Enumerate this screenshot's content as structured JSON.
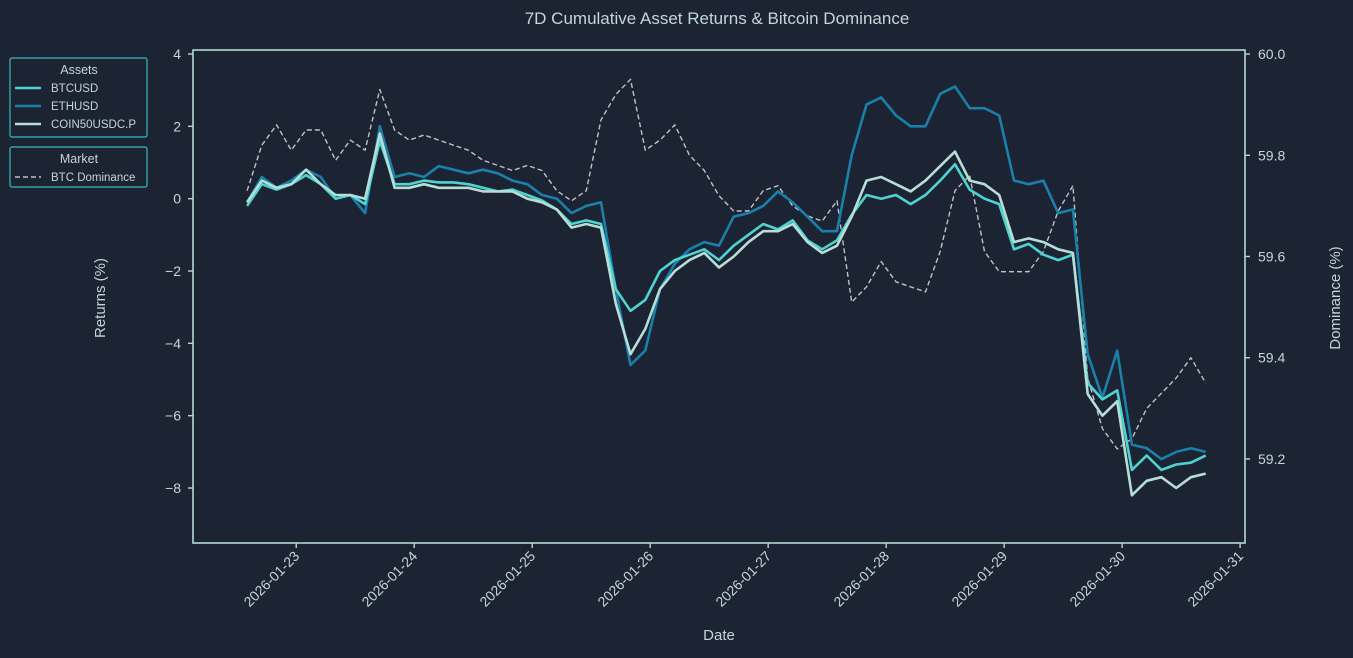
{
  "chart_data": {
    "type": "line",
    "title": "7D Cumulative Asset Returns & Bitcoin Dominance",
    "xlabel": "Date",
    "ylabel": "Returns (%)",
    "ylabel_right": "Dominance (%)",
    "xlim": [
      "2026-01-22 03:00",
      "2026-01-31 01:00"
    ],
    "ylim": [
      -9.52,
      4.11
    ],
    "ylim_right": [
      59.034,
      60.008
    ],
    "grid": false,
    "xticks": [
      "2026-01-23",
      "2026-01-24",
      "2026-01-25",
      "2026-01-26",
      "2026-01-27",
      "2026-01-28",
      "2026-01-29",
      "2026-01-30",
      "2026-01-31"
    ],
    "yticks": [
      4,
      2,
      0,
      -2,
      -4,
      -6,
      -8
    ],
    "yticks_right": [
      "59.2",
      "59.4",
      "59.6",
      "59.8",
      "60.0"
    ],
    "legends": [
      {
        "title": "Assets",
        "placement": "outside-top-left",
        "entries": [
          "BTCUSD",
          "ETHUSD",
          "COIN50USDC.P"
        ]
      },
      {
        "title": "Market",
        "placement": "outside-top-left",
        "entries": [
          "BTC Dominance"
        ]
      }
    ],
    "x": [
      "2026-01-22 14:00",
      "2026-01-22 17:00",
      "2026-01-22 20:00",
      "2026-01-22 23:00",
      "2026-01-23 02:00",
      "2026-01-23 05:00",
      "2026-01-23 08:00",
      "2026-01-23 11:00",
      "2026-01-23 14:00",
      "2026-01-23 17:00",
      "2026-01-23 20:00",
      "2026-01-23 23:00",
      "2026-01-24 02:00",
      "2026-01-24 05:00",
      "2026-01-24 08:00",
      "2026-01-24 11:00",
      "2026-01-24 14:00",
      "2026-01-24 17:00",
      "2026-01-24 20:00",
      "2026-01-24 23:00",
      "2026-01-25 02:00",
      "2026-01-25 05:00",
      "2026-01-25 08:00",
      "2026-01-25 11:00",
      "2026-01-25 14:00",
      "2026-01-25 17:00",
      "2026-01-25 20:00",
      "2026-01-25 23:00",
      "2026-01-26 02:00",
      "2026-01-26 05:00",
      "2026-01-26 08:00",
      "2026-01-26 11:00",
      "2026-01-26 14:00",
      "2026-01-26 17:00",
      "2026-01-26 20:00",
      "2026-01-26 23:00",
      "2026-01-27 02:00",
      "2026-01-27 05:00",
      "2026-01-27 08:00",
      "2026-01-27 11:00",
      "2026-01-27 14:00",
      "2026-01-27 17:00",
      "2026-01-27 20:00",
      "2026-01-27 23:00",
      "2026-01-28 02:00",
      "2026-01-28 05:00",
      "2026-01-28 08:00",
      "2026-01-28 11:00",
      "2026-01-28 14:00",
      "2026-01-28 17:00",
      "2026-01-28 20:00",
      "2026-01-28 23:00",
      "2026-01-29 02:00",
      "2026-01-29 05:00",
      "2026-01-29 08:00",
      "2026-01-29 11:00",
      "2026-01-29 14:00",
      "2026-01-29 17:00",
      "2026-01-29 20:00",
      "2026-01-29 23:00",
      "2026-01-30 02:00",
      "2026-01-30 05:00",
      "2026-01-30 08:00",
      "2026-01-30 11:00",
      "2026-01-30 14:00",
      "2026-01-30 17:00"
    ],
    "series": [
      {
        "name": "BTCUSD",
        "axis": "left",
        "color": "#4fd3d0",
        "style": "solid",
        "values": [
          -0.2,
          0.4,
          0.25,
          0.4,
          0.65,
          0.4,
          0,
          0.1,
          -0.15,
          1.6,
          0.4,
          0.4,
          0.5,
          0.45,
          0.45,
          0.4,
          0.3,
          0.2,
          0.25,
          0.1,
          -0.05,
          -0.3,
          -0.7,
          -0.6,
          -0.7,
          -2.5,
          -3.1,
          -2.8,
          -2.0,
          -1.7,
          -1.55,
          -1.4,
          -1.7,
          -1.3,
          -1.0,
          -0.7,
          -0.85,
          -0.6,
          -1.15,
          -1.4,
          -1.15,
          -0.45,
          0.1,
          0,
          0.1,
          -0.15,
          0.1,
          0.5,
          0.95,
          0.25,
          0,
          -0.15,
          -1.4,
          -1.25,
          -1.55,
          -1.7,
          -1.55,
          -5.1,
          -5.55,
          -5.3,
          -7.5,
          -7.1,
          -7.5,
          -7.35,
          -7.3,
          -7.1
        ]
      },
      {
        "name": "ETHUSD",
        "axis": "left",
        "color": "#1a80aa",
        "style": "solid",
        "values": [
          -0.1,
          0.6,
          0.3,
          0.5,
          0.8,
          0.6,
          0.0,
          0.1,
          -0.4,
          2.0,
          0.6,
          0.7,
          0.6,
          0.9,
          0.8,
          0.7,
          0.8,
          0.7,
          0.5,
          0.4,
          0.1,
          0.0,
          -0.4,
          -0.2,
          -0.1,
          -2.5,
          -4.6,
          -4.2,
          -2.5,
          -1.8,
          -1.4,
          -1.2,
          -1.3,
          -0.5,
          -0.4,
          -0.2,
          0.2,
          -0.1,
          -0.5,
          -0.9,
          -0.9,
          1.2,
          2.6,
          2.8,
          2.3,
          2.0,
          2.0,
          2.9,
          3.1,
          2.5,
          2.5,
          2.3,
          0.5,
          0.4,
          0.5,
          -0.4,
          -0.3,
          -4.3,
          -5.5,
          -4.2,
          -6.8,
          -6.9,
          -7.2,
          -7.0,
          -6.9,
          -7.0
        ]
      },
      {
        "name": "COIN50USDC.P",
        "axis": "left",
        "color": "#b6ddd7",
        "style": "solid",
        "values": [
          -0.1,
          0.5,
          0.3,
          0.4,
          0.8,
          0.4,
          0.1,
          0.1,
          0.0,
          1.8,
          0.3,
          0.3,
          0.4,
          0.3,
          0.3,
          0.3,
          0.2,
          0.2,
          0.2,
          0.0,
          -0.1,
          -0.3,
          -0.8,
          -0.7,
          -0.8,
          -2.9,
          -4.3,
          -3.6,
          -2.5,
          -2.0,
          -1.7,
          -1.5,
          -1.9,
          -1.6,
          -1.2,
          -0.9,
          -0.9,
          -0.7,
          -1.2,
          -1.5,
          -1.3,
          -0.5,
          0.5,
          0.6,
          0.4,
          0.2,
          0.5,
          0.9,
          1.3,
          0.5,
          0.4,
          0.1,
          -1.2,
          -1.1,
          -1.2,
          -1.4,
          -1.5,
          -5.4,
          -6.0,
          -5.6,
          -8.2,
          -7.8,
          -7.7,
          -8.0,
          -7.7,
          -7.6
        ]
      },
      {
        "name": "BTC Dominance",
        "axis": "right",
        "color": "#bfc0c8",
        "style": "dashed",
        "values": [
          59.73,
          59.82,
          59.86,
          59.81,
          59.85,
          59.85,
          59.79,
          59.83,
          59.81,
          59.93,
          59.85,
          59.83,
          59.84,
          59.83,
          59.82,
          59.81,
          59.79,
          59.78,
          59.77,
          59.78,
          59.77,
          59.73,
          59.71,
          59.73,
          59.87,
          59.92,
          59.95,
          59.81,
          59.83,
          59.86,
          59.8,
          59.77,
          59.72,
          59.69,
          59.69,
          59.73,
          59.74,
          59.7,
          59.68,
          59.67,
          59.71,
          59.51,
          59.54,
          59.59,
          59.55,
          59.54,
          59.53,
          59.61,
          59.73,
          59.76,
          59.61,
          59.57,
          59.57,
          59.57,
          59.61,
          59.69,
          59.74,
          59.36,
          59.26,
          59.22,
          59.24,
          59.3,
          59.33,
          59.36,
          59.4,
          59.35
        ]
      }
    ]
  },
  "colors": {
    "background": "#1c2333",
    "axes": "#b4d8d2",
    "text": "#c3d6d8",
    "legend_border": "#3ab8c0"
  }
}
